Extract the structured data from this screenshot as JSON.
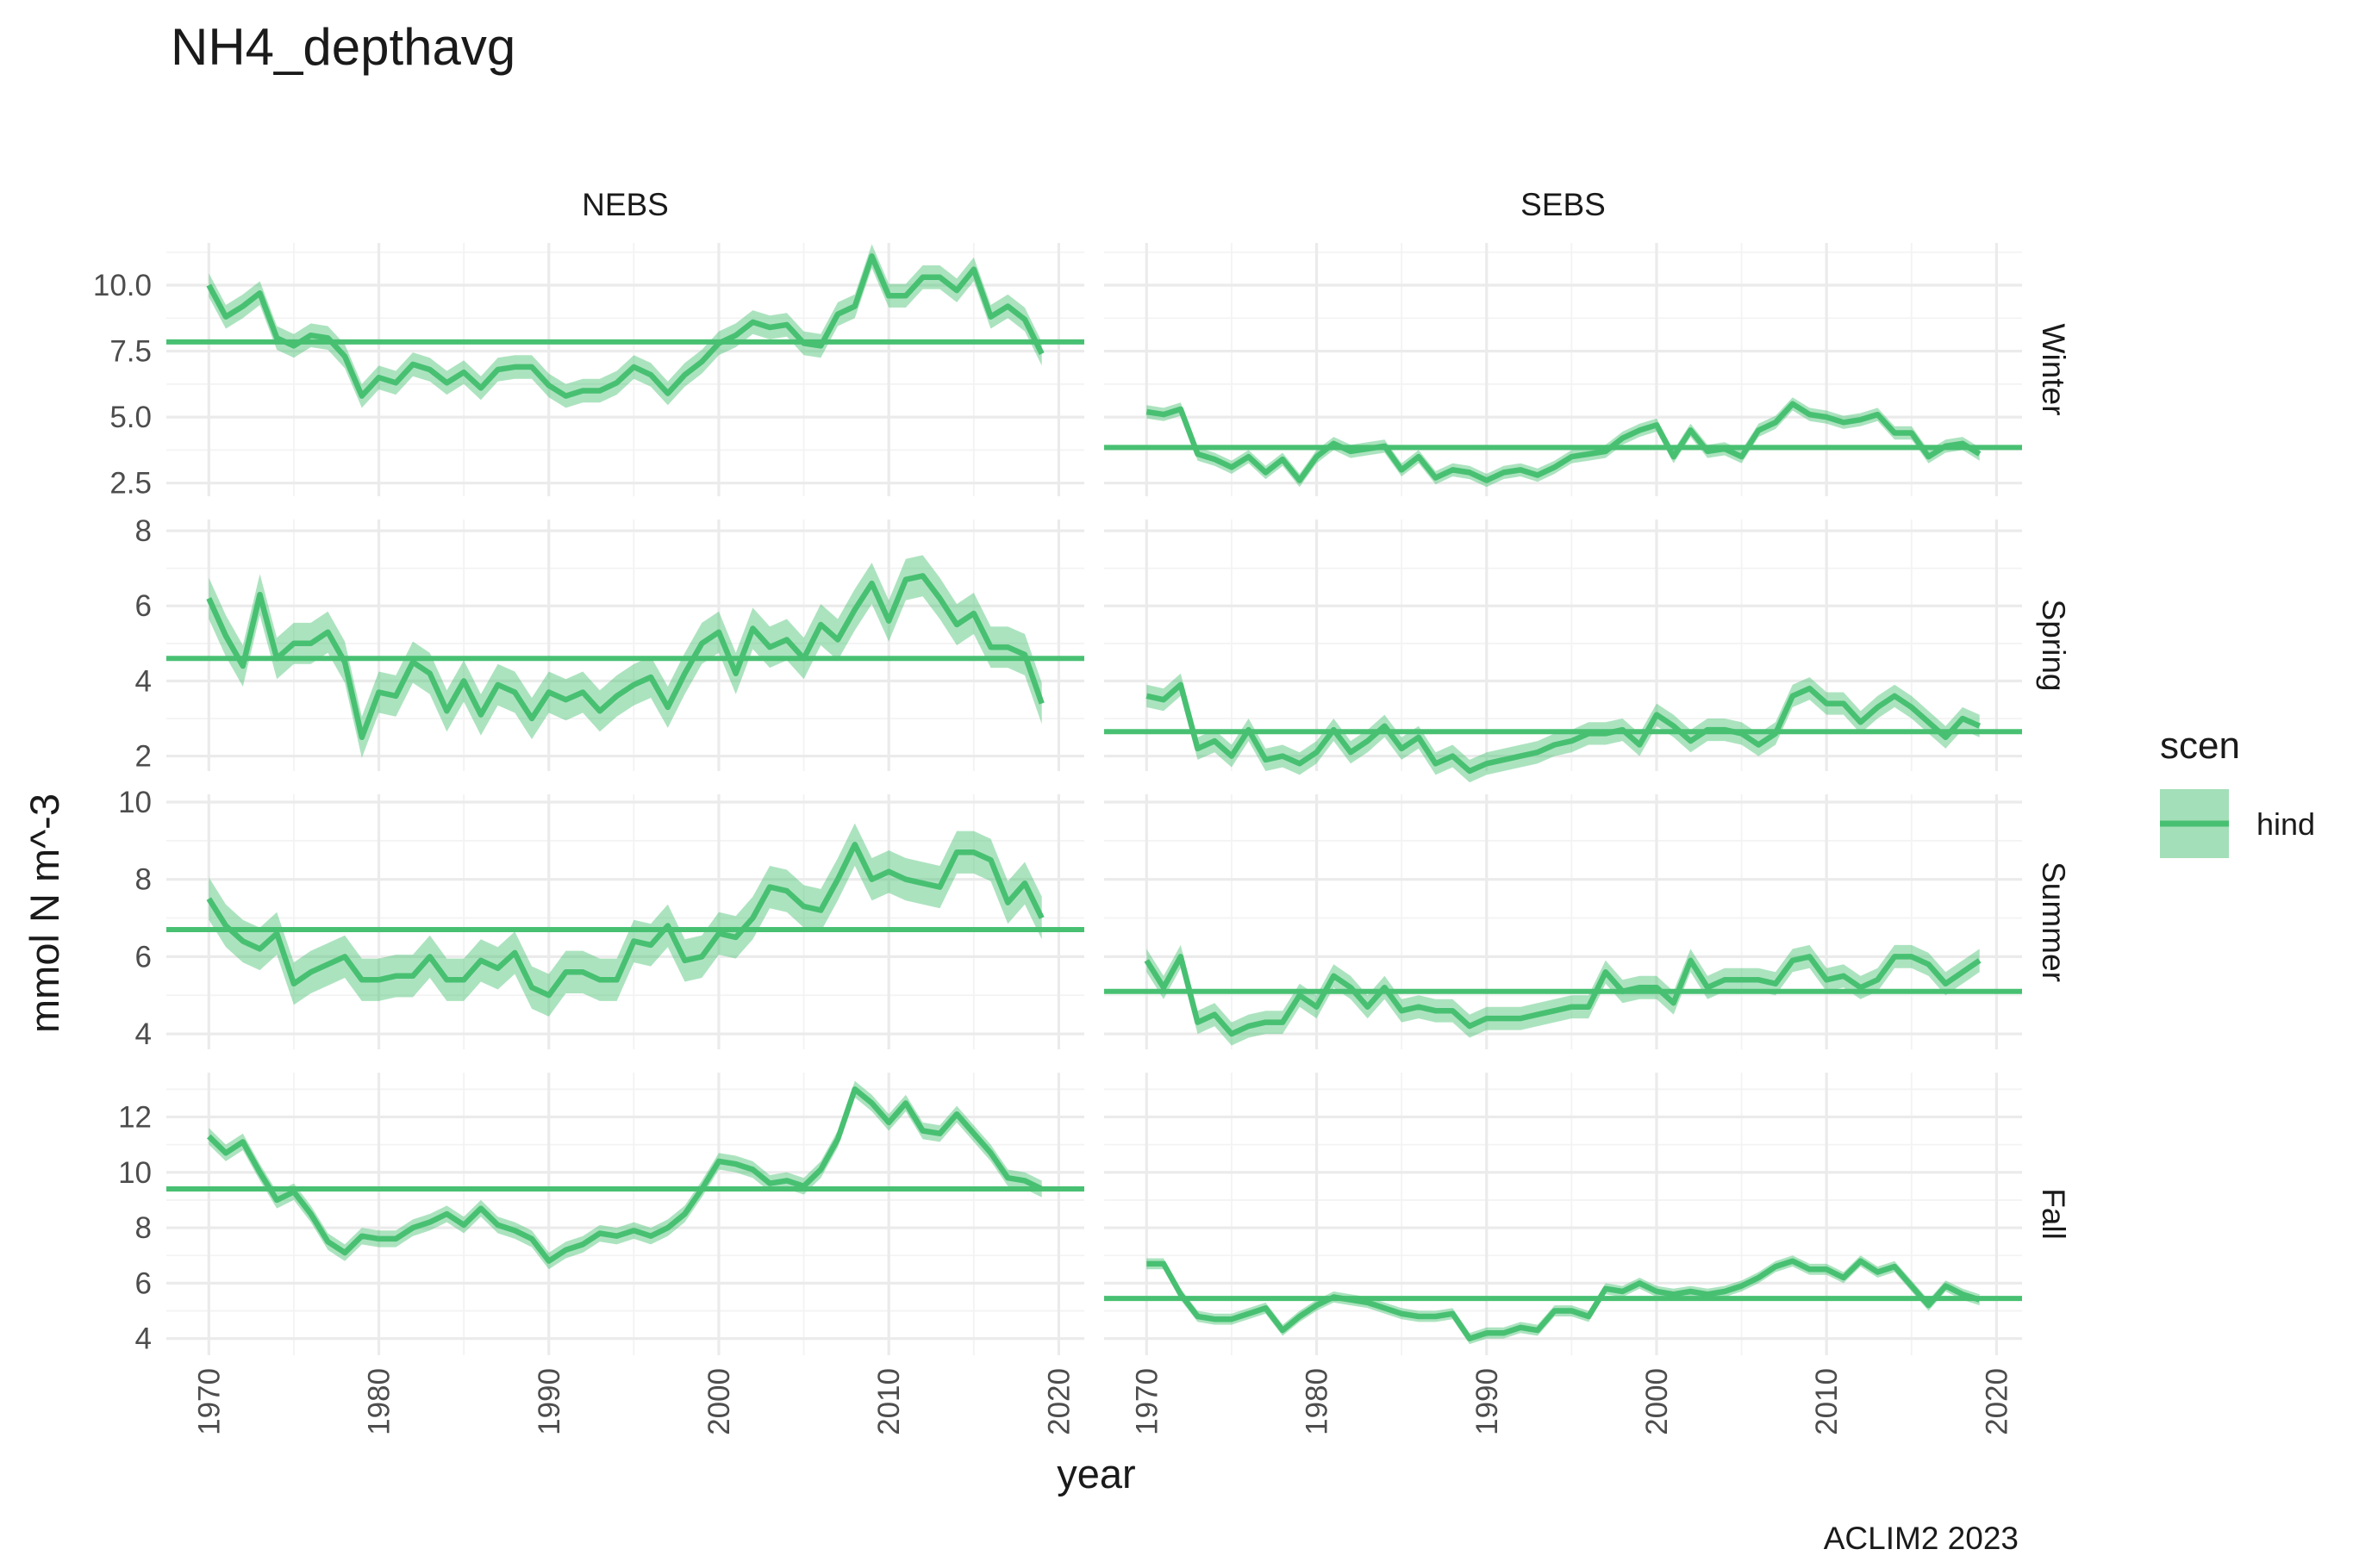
{
  "chart_data": {
    "type": "line",
    "title": "NH4_depthavg",
    "xlabel": "year",
    "ylabel": "mmol N m^-3",
    "caption": "ACLIM2 2023",
    "legend": {
      "title": "scen",
      "placement": "right",
      "items": [
        {
          "label": "hind",
          "color": "#48C072"
        }
      ]
    },
    "x_ticks": [
      1970,
      1980,
      1990,
      2000,
      2010,
      2020
    ],
    "xlim": [
      1967.5,
      2021.5
    ],
    "columns": [
      "NEBS",
      "SEBS"
    ],
    "rows": [
      {
        "label": "Winter",
        "ylim": [
          2.0,
          11.6
        ],
        "y_ticks": [
          2.5,
          5.0,
          7.5,
          10.0
        ],
        "y_tick_labels": [
          "2.5",
          "5.0",
          "7.5",
          "10.0"
        ],
        "panels": {
          "NEBS": {
            "reference": 7.85,
            "band_halfwidth": 0.45,
            "x": [
              1970,
              1971,
              1972,
              1973,
              1974,
              1975,
              1976,
              1977,
              1978,
              1979,
              1980,
              1981,
              1982,
              1983,
              1984,
              1985,
              1986,
              1987,
              1988,
              1989,
              1990,
              1991,
              1992,
              1993,
              1994,
              1995,
              1996,
              1997,
              1998,
              1999,
              2000,
              2001,
              2002,
              2003,
              2004,
              2005,
              2006,
              2007,
              2008,
              2009,
              2010,
              2011,
              2012,
              2013,
              2014,
              2015,
              2016,
              2017,
              2018,
              2019
            ],
            "y": [
              10.0,
              8.8,
              9.2,
              9.7,
              8.0,
              7.7,
              8.1,
              8.0,
              7.3,
              5.8,
              6.5,
              6.3,
              7.0,
              6.8,
              6.3,
              6.7,
              6.1,
              6.8,
              6.9,
              6.9,
              6.2,
              5.8,
              6.0,
              6.0,
              6.3,
              6.9,
              6.6,
              5.9,
              6.6,
              7.1,
              7.8,
              8.1,
              8.6,
              8.4,
              8.5,
              7.8,
              7.7,
              8.9,
              9.2,
              11.1,
              9.6,
              9.6,
              10.3,
              10.3,
              9.8,
              10.6,
              8.8,
              9.2,
              8.7,
              7.4
            ]
          },
          "SEBS": {
            "reference": 3.85,
            "band_halfwidth": 0.25,
            "x": [
              1970,
              1971,
              1972,
              1973,
              1974,
              1975,
              1976,
              1977,
              1978,
              1979,
              1980,
              1981,
              1982,
              1983,
              1984,
              1985,
              1986,
              1987,
              1988,
              1989,
              1990,
              1991,
              1992,
              1993,
              1994,
              1995,
              1996,
              1997,
              1998,
              1999,
              2000,
              2001,
              2002,
              2003,
              2004,
              2005,
              2006,
              2007,
              2008,
              2009,
              2010,
              2011,
              2012,
              2013,
              2014,
              2015,
              2016,
              2017,
              2018,
              2019
            ],
            "y": [
              5.2,
              5.1,
              5.3,
              3.6,
              3.4,
              3.1,
              3.5,
              2.9,
              3.4,
              2.6,
              3.5,
              4.0,
              3.7,
              3.8,
              3.9,
              3.0,
              3.5,
              2.7,
              3.0,
              2.9,
              2.6,
              2.9,
              3.0,
              2.8,
              3.1,
              3.5,
              3.6,
              3.7,
              4.2,
              4.5,
              4.7,
              3.5,
              4.5,
              3.7,
              3.8,
              3.5,
              4.5,
              4.8,
              5.5,
              5.1,
              5.0,
              4.8,
              4.9,
              5.1,
              4.4,
              4.4,
              3.5,
              3.9,
              4.0,
              3.6
            ]
          }
        }
      },
      {
        "label": "Spring",
        "ylim": [
          1.6,
          8.3
        ],
        "y_ticks": [
          2,
          4,
          6,
          8
        ],
        "y_tick_labels": [
          "2",
          "4",
          "6",
          "8"
        ],
        "panels": {
          "NEBS": {
            "reference": 4.6,
            "band_halfwidth": 0.55,
            "x": [
              1970,
              1971,
              1972,
              1973,
              1974,
              1975,
              1976,
              1977,
              1978,
              1979,
              1980,
              1981,
              1982,
              1983,
              1984,
              1985,
              1986,
              1987,
              1988,
              1989,
              1990,
              1991,
              1992,
              1993,
              1994,
              1995,
              1996,
              1997,
              1998,
              1999,
              2000,
              2001,
              2002,
              2003,
              2004,
              2005,
              2006,
              2007,
              2008,
              2009,
              2010,
              2011,
              2012,
              2013,
              2014,
              2015,
              2016,
              2017,
              2018,
              2019
            ],
            "y": [
              6.2,
              5.2,
              4.4,
              6.3,
              4.6,
              5.0,
              5.0,
              5.3,
              4.5,
              2.5,
              3.7,
              3.6,
              4.5,
              4.2,
              3.2,
              4.0,
              3.1,
              3.9,
              3.7,
              3.0,
              3.7,
              3.5,
              3.7,
              3.2,
              3.6,
              3.9,
              4.1,
              3.3,
              4.2,
              5.0,
              5.3,
              4.2,
              5.4,
              4.9,
              5.1,
              4.6,
              5.5,
              5.1,
              5.9,
              6.6,
              5.6,
              6.7,
              6.8,
              6.2,
              5.5,
              5.8,
              4.9,
              4.9,
              4.7,
              3.4
            ]
          },
          "SEBS": {
            "reference": 2.65,
            "band_halfwidth": 0.3,
            "x": [
              1970,
              1971,
              1972,
              1973,
              1974,
              1975,
              1976,
              1977,
              1978,
              1979,
              1980,
              1981,
              1982,
              1983,
              1984,
              1985,
              1986,
              1987,
              1988,
              1989,
              1990,
              1991,
              1992,
              1993,
              1994,
              1995,
              1996,
              1997,
              1998,
              1999,
              2000,
              2001,
              2002,
              2003,
              2004,
              2005,
              2006,
              2007,
              2008,
              2009,
              2010,
              2011,
              2012,
              2013,
              2014,
              2015,
              2016,
              2017,
              2018,
              2019
            ],
            "y": [
              3.6,
              3.5,
              3.9,
              2.2,
              2.4,
              2.0,
              2.7,
              1.9,
              2.0,
              1.8,
              2.1,
              2.7,
              2.1,
              2.4,
              2.8,
              2.2,
              2.5,
              1.8,
              2.0,
              1.6,
              1.8,
              1.9,
              2.0,
              2.1,
              2.3,
              2.4,
              2.6,
              2.6,
              2.7,
              2.3,
              3.1,
              2.8,
              2.4,
              2.7,
              2.7,
              2.6,
              2.3,
              2.6,
              3.6,
              3.8,
              3.4,
              3.4,
              2.9,
              3.3,
              3.6,
              3.3,
              2.9,
              2.5,
              3.0,
              2.8
            ]
          }
        }
      },
      {
        "label": "Summer",
        "ylim": [
          3.6,
          10.2
        ],
        "y_ticks": [
          4,
          6,
          8,
          10
        ],
        "y_tick_labels": [
          "4",
          "6",
          "8",
          "10"
        ],
        "panels": {
          "NEBS": {
            "reference": 6.7,
            "band_halfwidth": 0.55,
            "x": [
              1970,
              1971,
              1972,
              1973,
              1974,
              1975,
              1976,
              1977,
              1978,
              1979,
              1980,
              1981,
              1982,
              1983,
              1984,
              1985,
              1986,
              1987,
              1988,
              1989,
              1990,
              1991,
              1992,
              1993,
              1994,
              1995,
              1996,
              1997,
              1998,
              1999,
              2000,
              2001,
              2002,
              2003,
              2004,
              2005,
              2006,
              2007,
              2008,
              2009,
              2010,
              2011,
              2012,
              2013,
              2014,
              2015,
              2016,
              2017,
              2018,
              2019
            ],
            "y": [
              7.5,
              6.8,
              6.4,
              6.2,
              6.6,
              5.3,
              5.6,
              5.8,
              6.0,
              5.4,
              5.4,
              5.5,
              5.5,
              6.0,
              5.4,
              5.4,
              5.9,
              5.7,
              6.1,
              5.2,
              5.0,
              5.6,
              5.6,
              5.4,
              5.4,
              6.4,
              6.3,
              6.8,
              5.9,
              6.0,
              6.6,
              6.5,
              7.0,
              7.8,
              7.7,
              7.3,
              7.2,
              8.0,
              8.9,
              8.0,
              8.2,
              8.0,
              7.9,
              7.8,
              8.7,
              8.7,
              8.5,
              7.4,
              7.9,
              7.0
            ]
          },
          "SEBS": {
            "reference": 5.1,
            "band_halfwidth": 0.3,
            "x": [
              1970,
              1971,
              1972,
              1973,
              1974,
              1975,
              1976,
              1977,
              1978,
              1979,
              1980,
              1981,
              1982,
              1983,
              1984,
              1985,
              1986,
              1987,
              1988,
              1989,
              1990,
              1991,
              1992,
              1993,
              1994,
              1995,
              1996,
              1997,
              1998,
              1999,
              2000,
              2001,
              2002,
              2003,
              2004,
              2005,
              2006,
              2007,
              2008,
              2009,
              2010,
              2011,
              2012,
              2013,
              2014,
              2015,
              2016,
              2017,
              2018,
              2019
            ],
            "y": [
              5.9,
              5.2,
              6.0,
              4.3,
              4.5,
              4.0,
              4.2,
              4.3,
              4.3,
              5.0,
              4.7,
              5.5,
              5.2,
              4.7,
              5.2,
              4.6,
              4.7,
              4.6,
              4.6,
              4.2,
              4.4,
              4.4,
              4.4,
              4.5,
              4.6,
              4.7,
              4.7,
              5.6,
              5.1,
              5.2,
              5.2,
              4.8,
              5.9,
              5.2,
              5.4,
              5.4,
              5.4,
              5.3,
              5.9,
              6.0,
              5.4,
              5.5,
              5.2,
              5.4,
              6.0,
              6.0,
              5.8,
              5.3,
              5.6,
              5.9
            ]
          }
        }
      },
      {
        "label": "Fall",
        "ylim": [
          3.4,
          13.6
        ],
        "y_ticks": [
          4,
          6,
          8,
          10,
          12
        ],
        "y_tick_labels": [
          "4",
          "6",
          "8",
          "10",
          "12"
        ],
        "panels": {
          "NEBS": {
            "reference": 9.4,
            "band_halfwidth": 0.3,
            "x": [
              1970,
              1971,
              1972,
              1973,
              1974,
              1975,
              1976,
              1977,
              1978,
              1979,
              1980,
              1981,
              1982,
              1983,
              1984,
              1985,
              1986,
              1987,
              1988,
              1989,
              1990,
              1991,
              1992,
              1993,
              1994,
              1995,
              1996,
              1997,
              1998,
              1999,
              2000,
              2001,
              2002,
              2003,
              2004,
              2005,
              2006,
              2007,
              2008,
              2009,
              2010,
              2011,
              2012,
              2013,
              2014,
              2015,
              2016,
              2017,
              2018,
              2019
            ],
            "y": [
              11.3,
              10.7,
              11.1,
              10.0,
              9.0,
              9.3,
              8.5,
              7.5,
              7.1,
              7.7,
              7.6,
              7.6,
              8.0,
              8.2,
              8.5,
              8.1,
              8.7,
              8.1,
              7.9,
              7.6,
              6.8,
              7.2,
              7.4,
              7.8,
              7.7,
              7.9,
              7.7,
              8.0,
              8.5,
              9.4,
              10.4,
              10.3,
              10.1,
              9.6,
              9.7,
              9.5,
              10.1,
              11.2,
              13.0,
              12.5,
              11.8,
              12.5,
              11.5,
              11.4,
              12.1,
              11.4,
              10.7,
              9.8,
              9.7,
              9.4
            ]
          },
          "SEBS": {
            "reference": 5.45,
            "band_halfwidth": 0.2,
            "x": [
              1970,
              1971,
              1972,
              1973,
              1974,
              1975,
              1976,
              1977,
              1978,
              1979,
              1980,
              1981,
              1982,
              1983,
              1984,
              1985,
              1986,
              1987,
              1988,
              1989,
              1990,
              1991,
              1992,
              1993,
              1994,
              1995,
              1996,
              1997,
              1998,
              1999,
              2000,
              2001,
              2002,
              2003,
              2004,
              2005,
              2006,
              2007,
              2008,
              2009,
              2010,
              2011,
              2012,
              2013,
              2014,
              2015,
              2016,
              2017,
              2018,
              2019
            ],
            "y": [
              6.7,
              6.7,
              5.6,
              4.8,
              4.7,
              4.7,
              4.9,
              5.1,
              4.3,
              4.8,
              5.2,
              5.5,
              5.4,
              5.3,
              5.1,
              4.9,
              4.8,
              4.8,
              4.9,
              4.0,
              4.2,
              4.2,
              4.4,
              4.3,
              5.0,
              5.0,
              4.8,
              5.8,
              5.7,
              6.0,
              5.7,
              5.6,
              5.7,
              5.6,
              5.7,
              5.9,
              6.2,
              6.6,
              6.8,
              6.5,
              6.5,
              6.2,
              6.8,
              6.4,
              6.6,
              5.9,
              5.2,
              5.9,
              5.6,
              5.4
            ]
          }
        }
      }
    ]
  }
}
